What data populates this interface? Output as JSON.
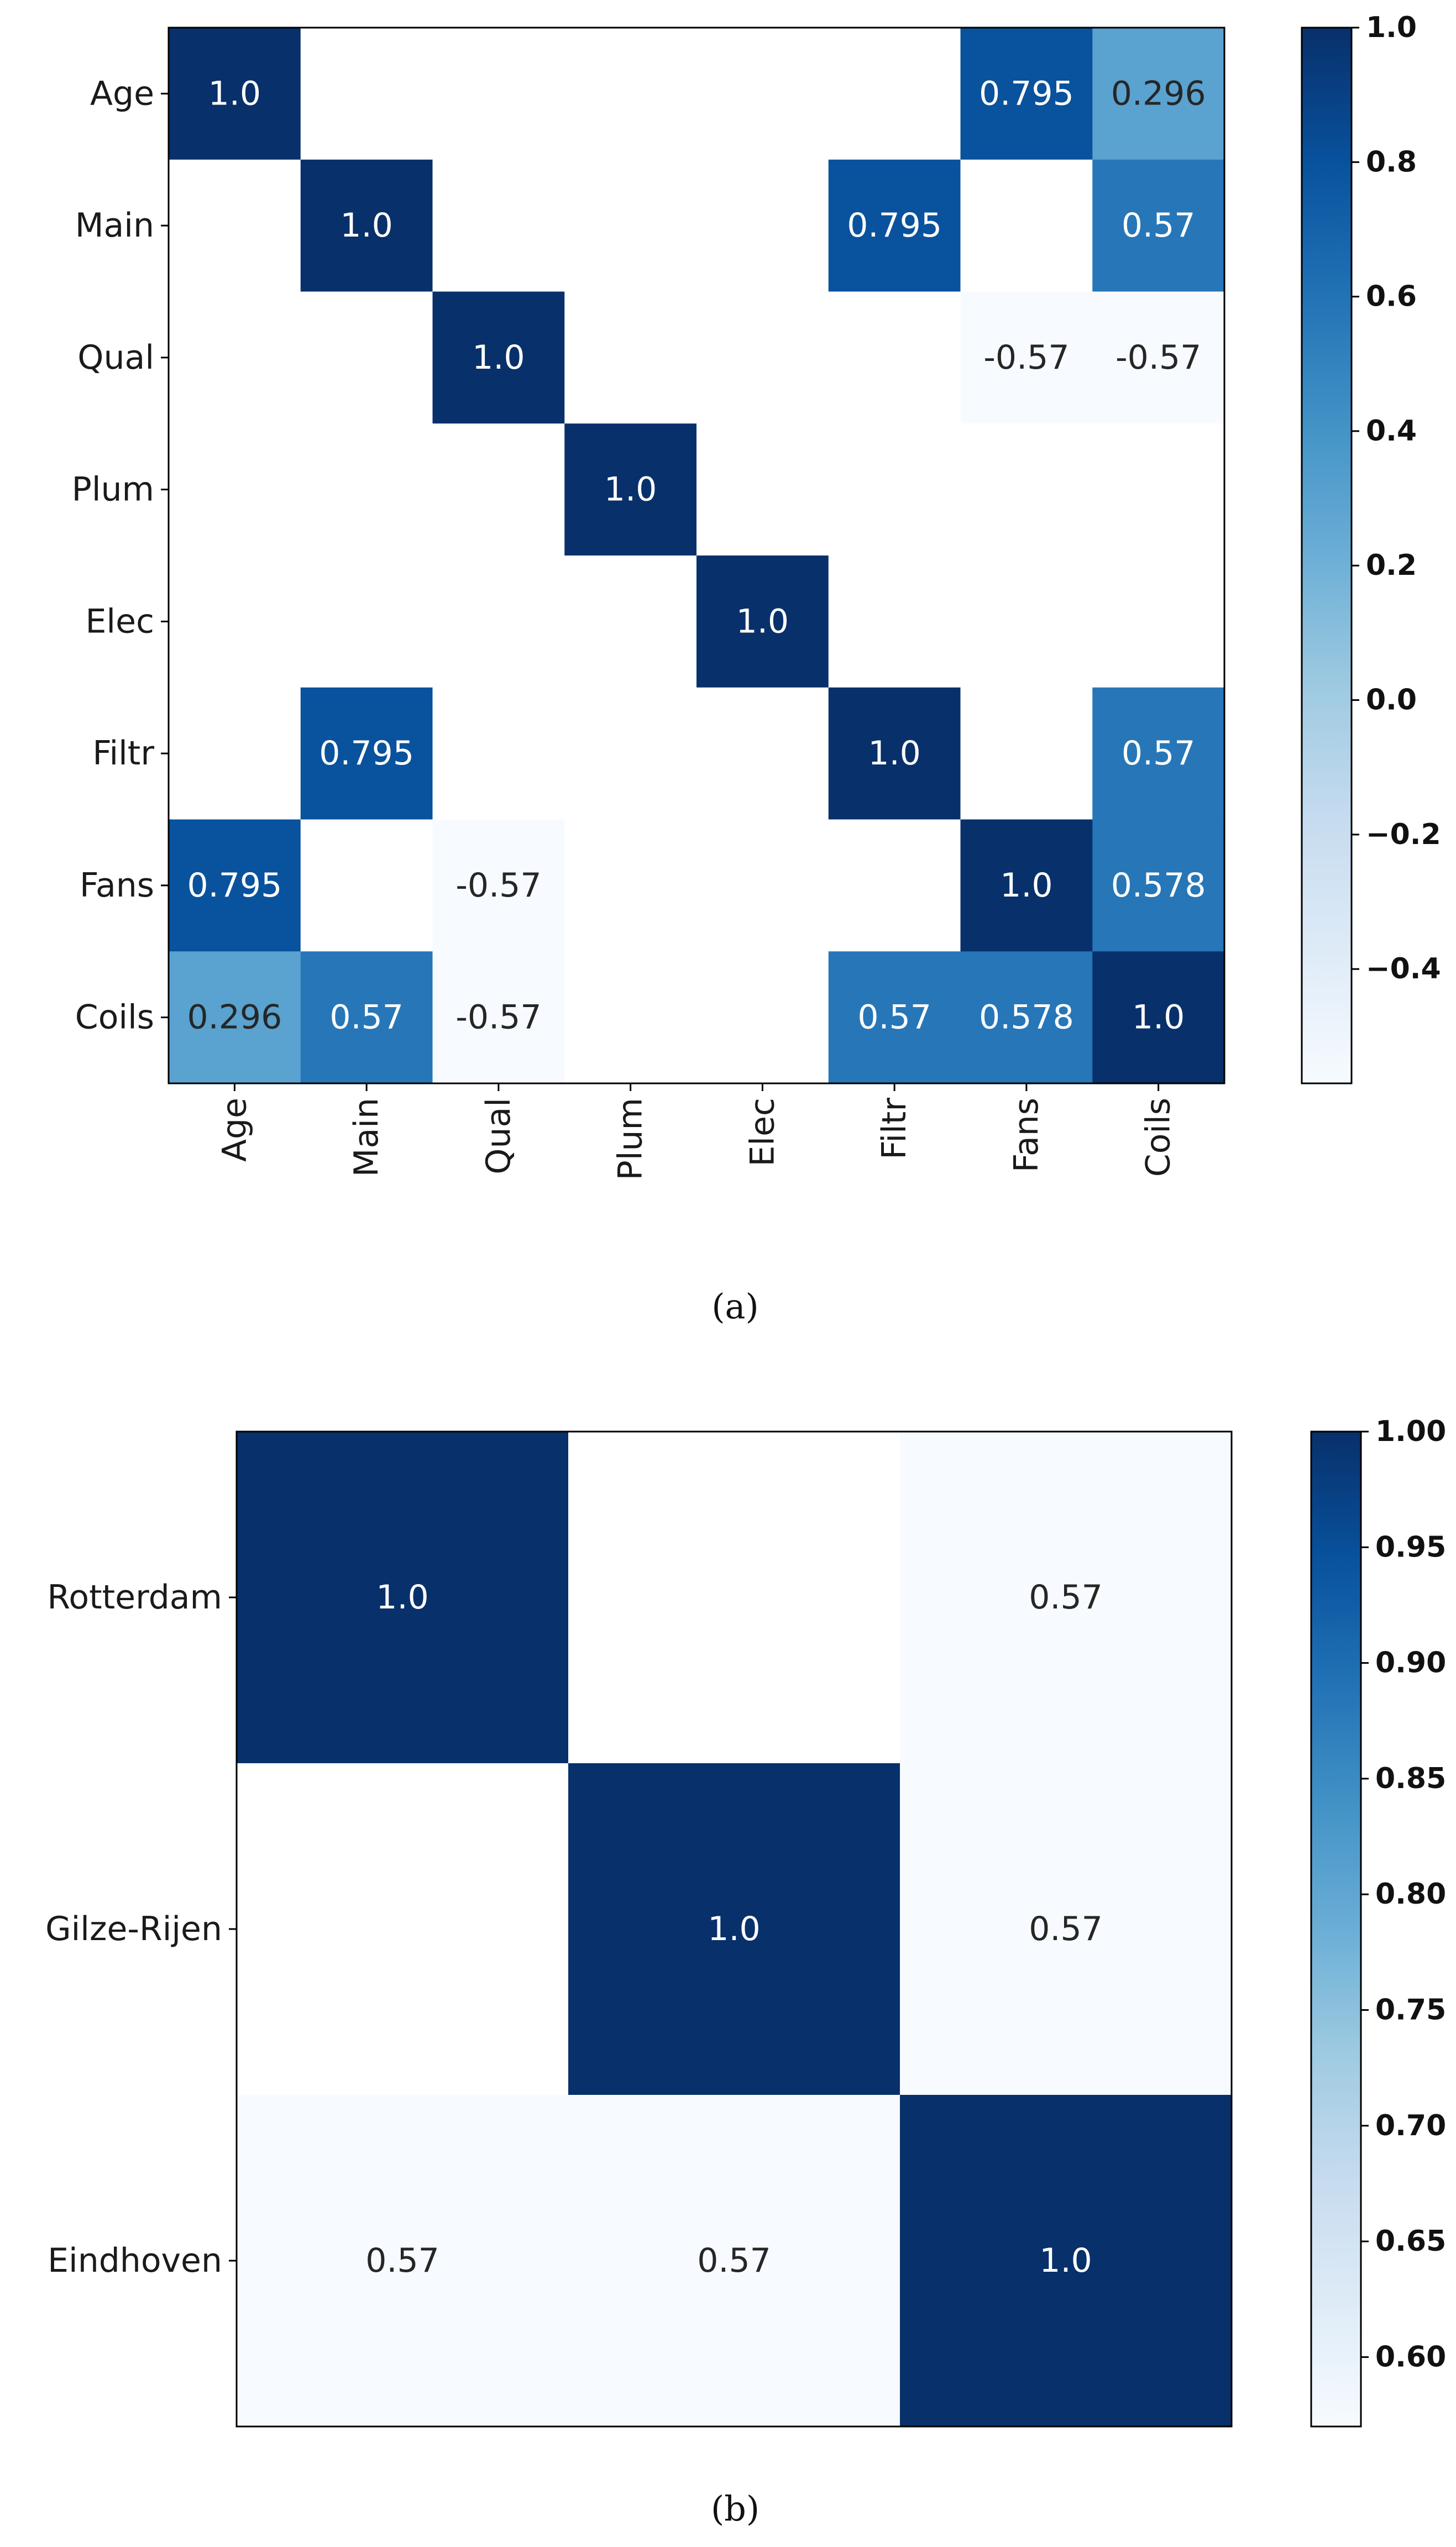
{
  "chart_data": [
    {
      "type": "heatmap",
      "caption": "(a)",
      "row_labels": [
        "Age",
        "Main",
        "Qual",
        "Plum",
        "Elec",
        "Filtr",
        "Fans",
        "Coils"
      ],
      "col_labels": [
        "Age",
        "Main",
        "Qual",
        "Plum",
        "Elec",
        "Filtr",
        "Fans",
        "Coils"
      ],
      "values": [
        [
          1.0,
          null,
          null,
          null,
          null,
          null,
          0.795,
          0.296
        ],
        [
          null,
          1.0,
          null,
          null,
          null,
          0.795,
          null,
          0.57
        ],
        [
          null,
          null,
          1.0,
          null,
          null,
          null,
          -0.57,
          -0.57
        ],
        [
          null,
          null,
          null,
          1.0,
          null,
          null,
          null,
          null
        ],
        [
          null,
          null,
          null,
          null,
          1.0,
          null,
          null,
          null
        ],
        [
          null,
          0.795,
          null,
          null,
          null,
          1.0,
          null,
          0.57
        ],
        [
          0.795,
          null,
          -0.57,
          null,
          null,
          null,
          1.0,
          0.578
        ],
        [
          0.296,
          0.57,
          -0.57,
          null,
          null,
          0.57,
          0.578,
          1.0
        ]
      ],
      "cell_text": [
        [
          "1.0",
          "",
          "",
          "",
          "",
          "",
          "0.795",
          "0.296"
        ],
        [
          "",
          "1.0",
          "",
          "",
          "",
          "0.795",
          "",
          "0.57"
        ],
        [
          "",
          "",
          "1.0",
          "",
          "",
          "",
          "-0.57",
          "-0.57"
        ],
        [
          "",
          "",
          "",
          "1.0",
          "",
          "",
          "",
          ""
        ],
        [
          "",
          "",
          "",
          "",
          "1.0",
          "",
          "",
          ""
        ],
        [
          "",
          "0.795",
          "",
          "",
          "",
          "1.0",
          "",
          "0.57"
        ],
        [
          "0.795",
          "",
          "-0.57",
          "",
          "",
          "",
          "1.0",
          "0.578"
        ],
        [
          "0.296",
          "0.57",
          "-0.57",
          "",
          "",
          "0.57",
          "0.578",
          "1.0"
        ]
      ],
      "colormap": "Blues",
      "vmin": -0.57,
      "vmax": 1.0,
      "colorbar_ticks": [
        1.0,
        0.8,
        0.6,
        0.4,
        0.2,
        0.0,
        -0.2,
        -0.4
      ],
      "colorbar_tick_labels": [
        "1.0",
        "0.8",
        "0.6",
        "0.4",
        "0.2",
        "0.0",
        "−0.2",
        "−0.4"
      ]
    },
    {
      "type": "heatmap",
      "caption": "(b)",
      "row_labels": [
        "Rotterdam",
        "Gilze-Rijen",
        "Eindhoven"
      ],
      "col_labels": [],
      "values": [
        [
          1.0,
          null,
          0.57
        ],
        [
          null,
          1.0,
          0.57
        ],
        [
          0.57,
          0.57,
          1.0
        ]
      ],
      "cell_text": [
        [
          "1.0",
          "",
          "0.57"
        ],
        [
          "",
          "1.0",
          "0.57"
        ],
        [
          "0.57",
          "0.57",
          "1.0"
        ]
      ],
      "colormap": "Blues",
      "vmin": 0.57,
      "vmax": 1.0,
      "colorbar_ticks": [
        1.0,
        0.95,
        0.9,
        0.85,
        0.8,
        0.75,
        0.7,
        0.65,
        0.6
      ],
      "colorbar_tick_labels": [
        "1.00",
        "0.95",
        "0.90",
        "0.85",
        "0.80",
        "0.75",
        "0.70",
        "0.65",
        "0.60"
      ]
    }
  ]
}
